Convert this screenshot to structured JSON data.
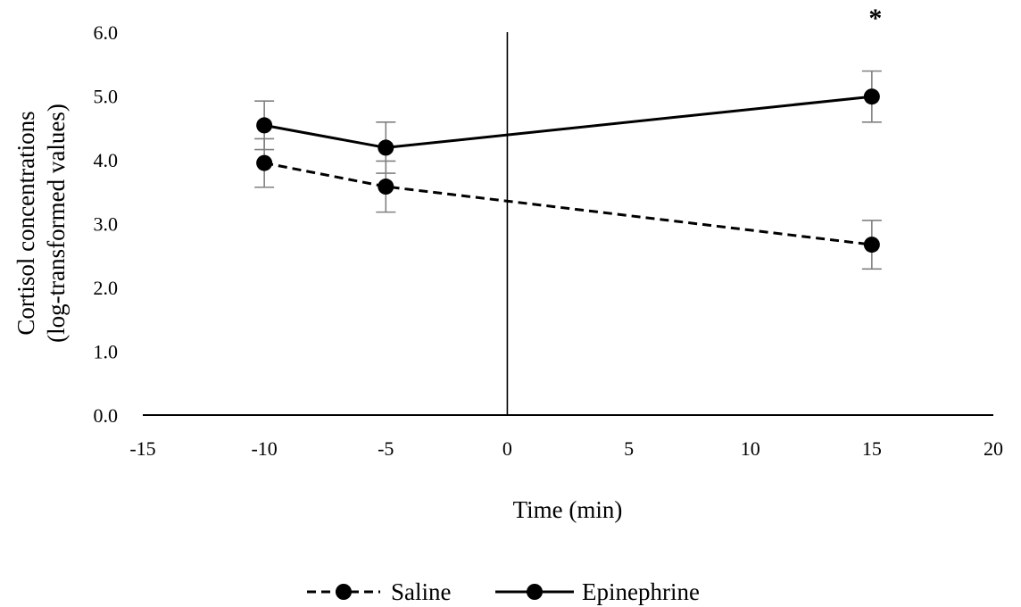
{
  "chart_data": {
    "type": "line",
    "title": "",
    "xlabel": "Time (min)",
    "ylabel": [
      "Cortisol concentrations",
      "(log-transformed  values)"
    ],
    "xlim": [
      -15,
      20
    ],
    "ylim": [
      0,
      6
    ],
    "x_ticks": [
      "-15",
      "-10",
      "-5",
      "0",
      "5",
      "10",
      "15",
      "20"
    ],
    "y_ticks": [
      "0.0",
      "1.0",
      "2.0",
      "3.0",
      "4.0",
      "5.0",
      "6.0"
    ],
    "vertical_line_x": 0,
    "grid": false,
    "legend_position": "bottom",
    "series": [
      {
        "name": "Saline",
        "style": "dashed",
        "color": "#000000",
        "x": [
          -10,
          -5,
          15
        ],
        "y": [
          3.95,
          3.58,
          2.67
        ],
        "error": [
          0.38,
          0.4,
          0.38
        ]
      },
      {
        "name": "Epinephrine",
        "style": "solid",
        "color": "#000000",
        "x": [
          -10,
          -5,
          15
        ],
        "y": [
          4.54,
          4.19,
          4.99
        ],
        "error": [
          0.38,
          0.4,
          0.4
        ]
      }
    ],
    "annotations": [
      {
        "text": "*",
        "x": 15
      }
    ],
    "errorbar_color": "#808080"
  }
}
